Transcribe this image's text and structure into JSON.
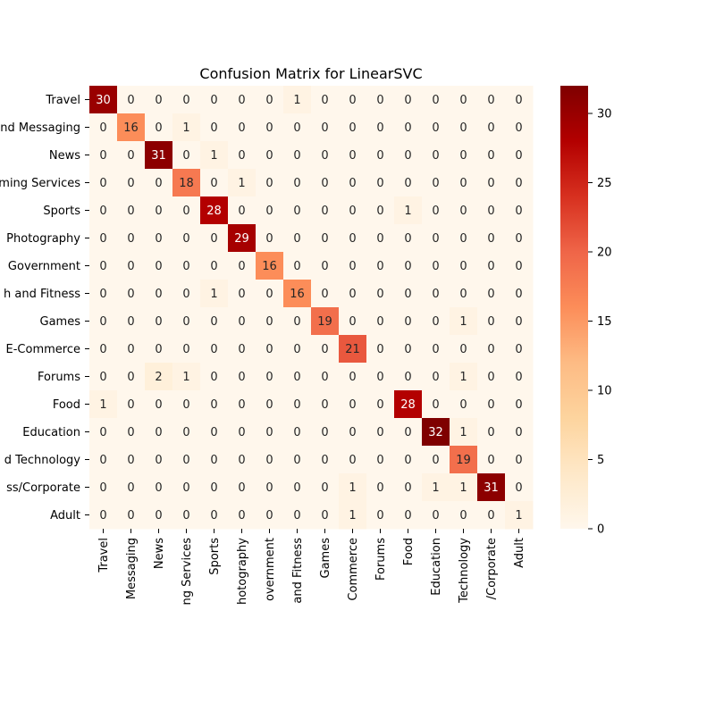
{
  "chart_data": {
    "type": "heatmap",
    "title": "Confusion Matrix for LinearSVC",
    "xlabel": "",
    "ylabel": "",
    "row_labels": [
      "Travel",
      "nd Messaging",
      "News",
      "ming Services",
      "Sports",
      "Photography",
      "Government",
      "h and Fitness",
      "Games",
      "E-Commerce",
      "Forums",
      "Food",
      "Education",
      "d Technology",
      "ss/Corporate",
      "Adult"
    ],
    "col_labels": [
      "Travel",
      "Messaging",
      "News",
      "ng Services",
      "Sports",
      "hotography",
      "overnment",
      "and Fitness",
      "Games",
      "Commerce",
      "Forums",
      "Food",
      "Education",
      "Technology",
      "/Corporate",
      "Adult"
    ],
    "matrix": [
      [
        30,
        0,
        0,
        0,
        0,
        0,
        0,
        1,
        0,
        0,
        0,
        0,
        0,
        0,
        0,
        0
      ],
      [
        0,
        16,
        0,
        1,
        0,
        0,
        0,
        0,
        0,
        0,
        0,
        0,
        0,
        0,
        0,
        0
      ],
      [
        0,
        0,
        31,
        0,
        1,
        0,
        0,
        0,
        0,
        0,
        0,
        0,
        0,
        0,
        0,
        0
      ],
      [
        0,
        0,
        0,
        18,
        0,
        1,
        0,
        0,
        0,
        0,
        0,
        0,
        0,
        0,
        0,
        0
      ],
      [
        0,
        0,
        0,
        0,
        28,
        0,
        0,
        0,
        0,
        0,
        0,
        1,
        0,
        0,
        0,
        0
      ],
      [
        0,
        0,
        0,
        0,
        0,
        29,
        0,
        0,
        0,
        0,
        0,
        0,
        0,
        0,
        0,
        0
      ],
      [
        0,
        0,
        0,
        0,
        0,
        0,
        16,
        0,
        0,
        0,
        0,
        0,
        0,
        0,
        0,
        0
      ],
      [
        0,
        0,
        0,
        0,
        1,
        0,
        0,
        16,
        0,
        0,
        0,
        0,
        0,
        0,
        0,
        0
      ],
      [
        0,
        0,
        0,
        0,
        0,
        0,
        0,
        0,
        19,
        0,
        0,
        0,
        0,
        1,
        0,
        0
      ],
      [
        0,
        0,
        0,
        0,
        0,
        0,
        0,
        0,
        0,
        21,
        0,
        0,
        0,
        0,
        0,
        0
      ],
      [
        0,
        0,
        2,
        1,
        0,
        0,
        0,
        0,
        0,
        0,
        0,
        0,
        0,
        1,
        0,
        0
      ],
      [
        1,
        0,
        0,
        0,
        0,
        0,
        0,
        0,
        0,
        0,
        0,
        28,
        0,
        0,
        0,
        0
      ],
      [
        0,
        0,
        0,
        0,
        0,
        0,
        0,
        0,
        0,
        0,
        0,
        0,
        32,
        1,
        0,
        0
      ],
      [
        0,
        0,
        0,
        0,
        0,
        0,
        0,
        0,
        0,
        0,
        0,
        0,
        0,
        19,
        0,
        0
      ],
      [
        0,
        0,
        0,
        0,
        0,
        0,
        0,
        0,
        0,
        1,
        0,
        0,
        1,
        1,
        31,
        0
      ],
      [
        0,
        0,
        0,
        0,
        0,
        0,
        0,
        0,
        0,
        1,
        0,
        0,
        0,
        0,
        0,
        1
      ]
    ],
    "colormap": "OrRd",
    "colorbar": {
      "vmin": 0,
      "vmax": 32,
      "ticks": [
        0,
        5,
        10,
        15,
        20,
        25,
        30
      ]
    },
    "colors": [
      "#fff7ec",
      "#fee8c8",
      "#fdd49e",
      "#fdbb84",
      "#fc8d59",
      "#ef6548",
      "#d7301f",
      "#b30000",
      "#7f0000"
    ],
    "grid": false
  }
}
